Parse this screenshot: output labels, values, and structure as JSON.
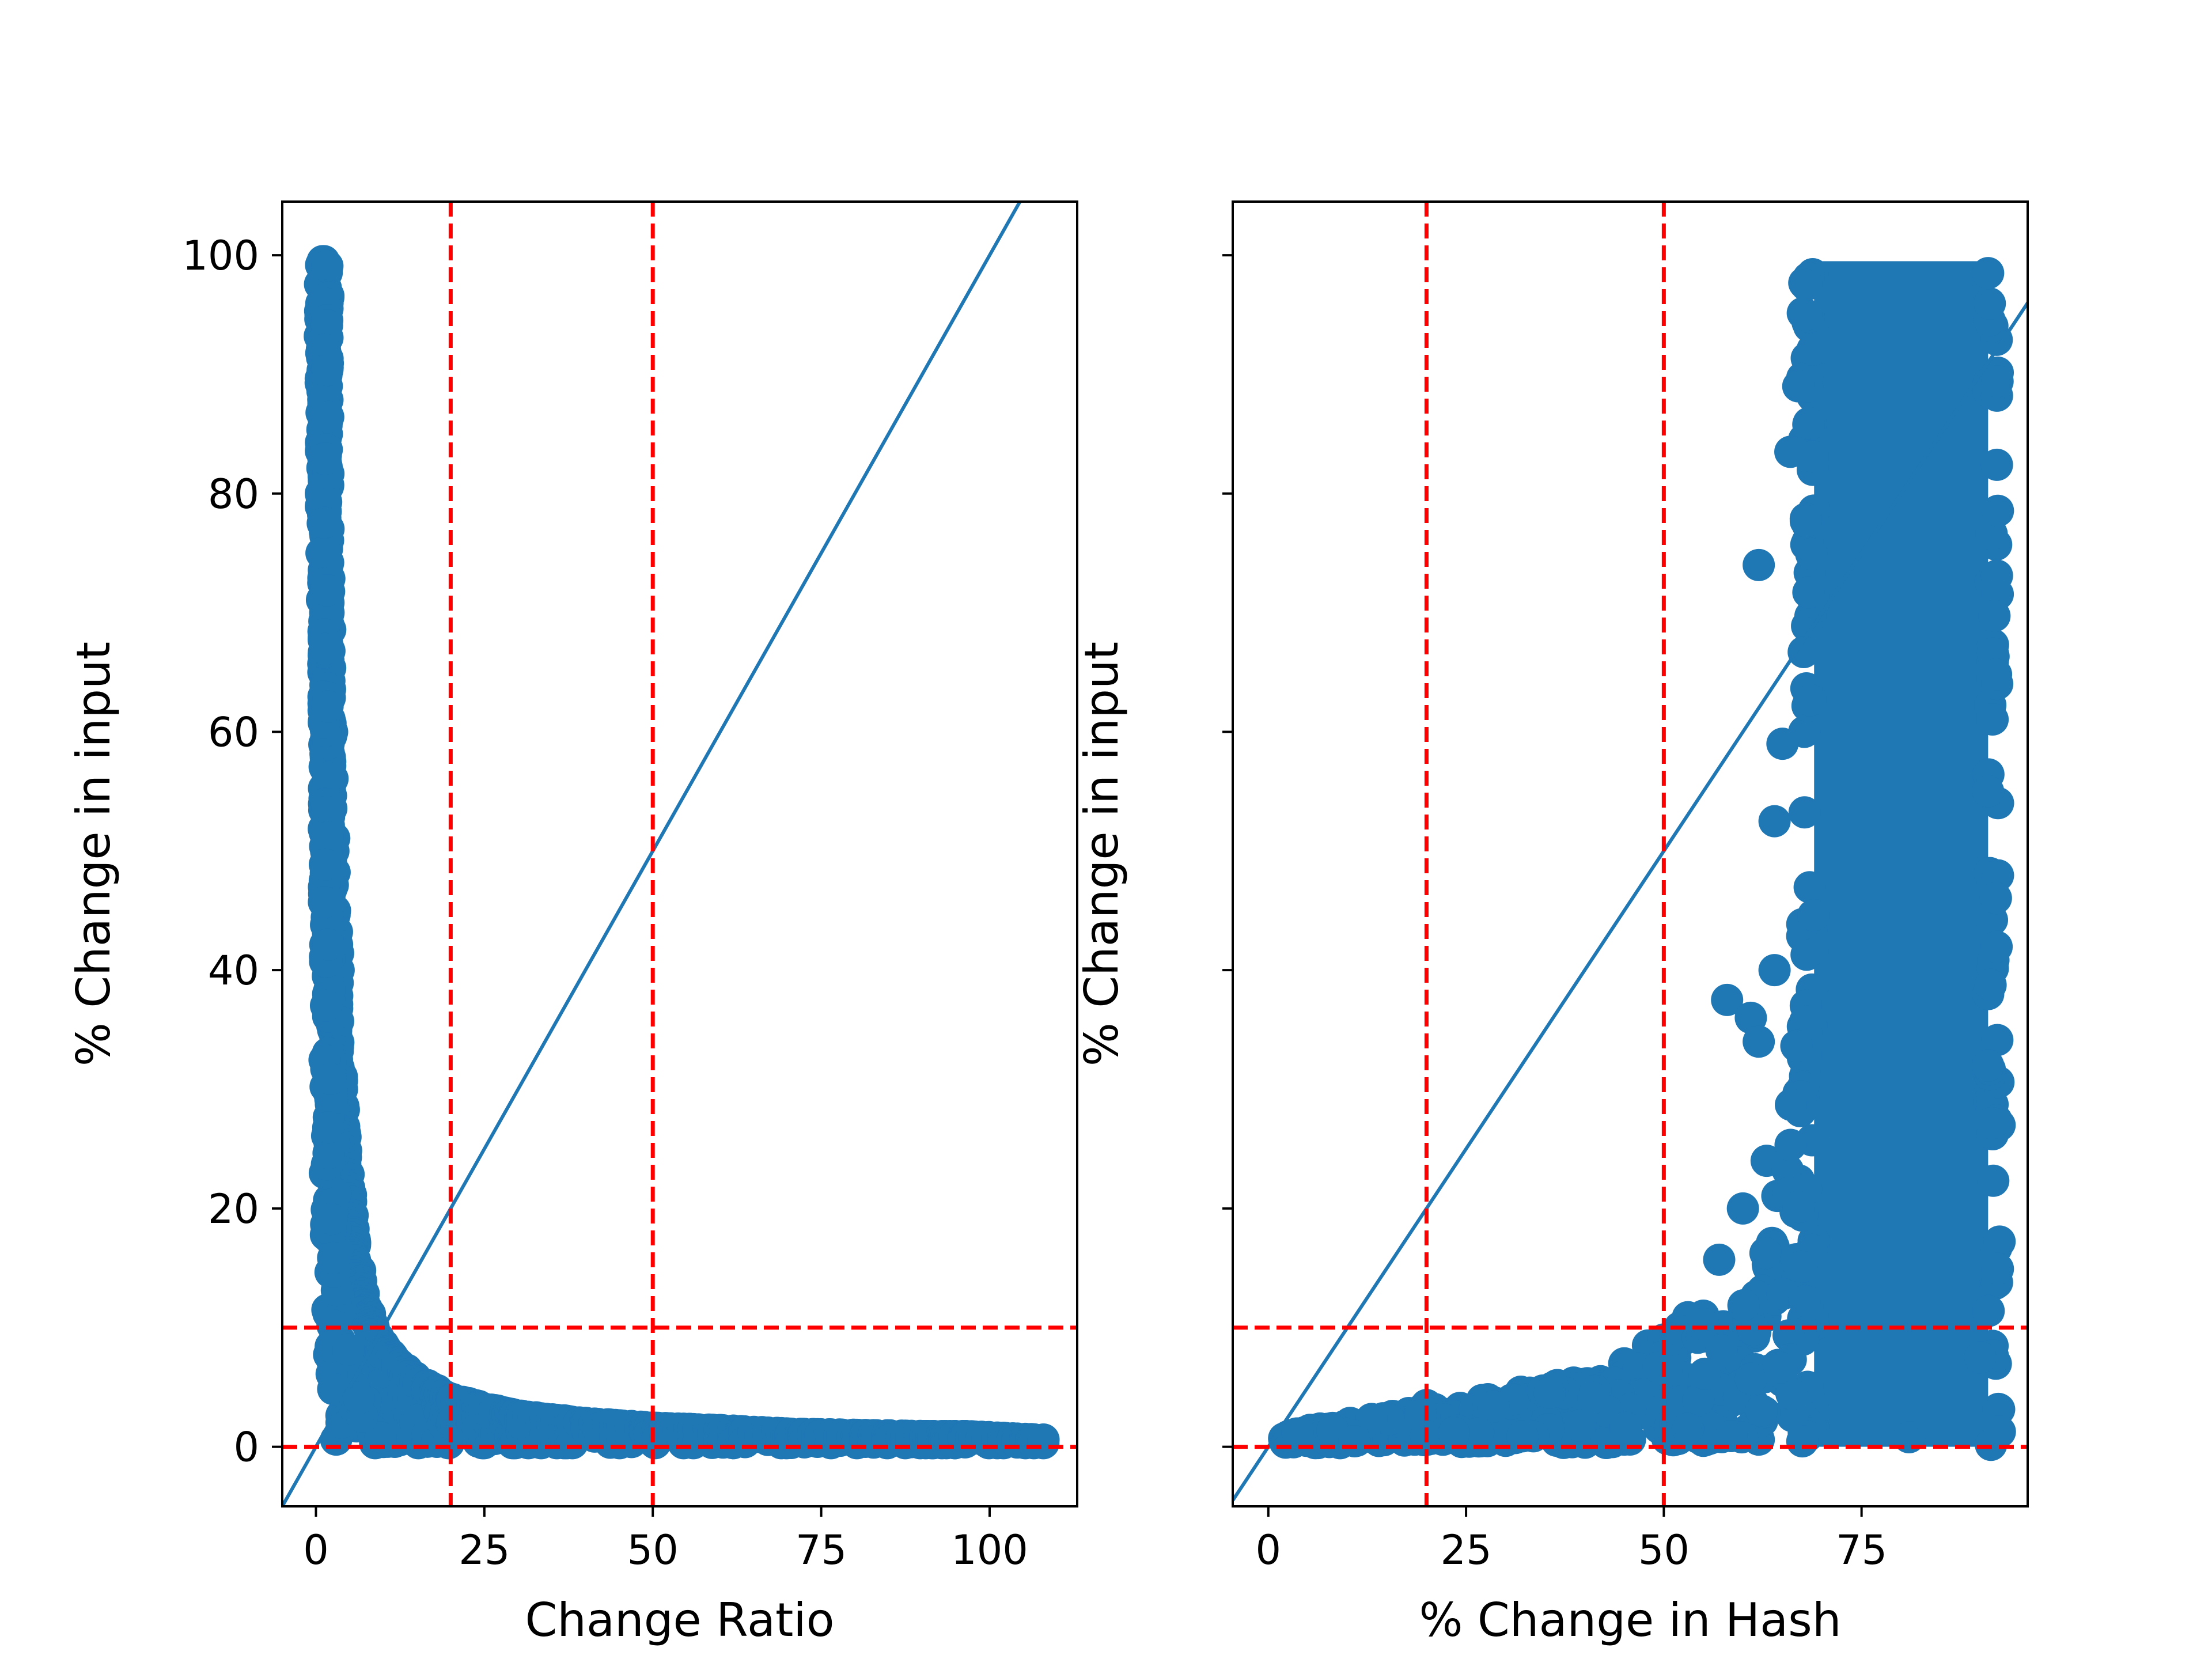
{
  "figure": {
    "colors": {
      "marker": "#1f77b4",
      "identity_line": "#1f77b4",
      "threshold": "#ff0000",
      "background": "#ffffff"
    }
  },
  "chart_data": [
    {
      "type": "scatter",
      "xlabel": "Change Ratio",
      "ylabel": "% Change in input",
      "xlim": [
        -5,
        113
      ],
      "ylim": [
        -5,
        104.5
      ],
      "xticks": [
        0,
        25,
        50,
        75,
        100
      ],
      "yticks": [
        0,
        20,
        40,
        60,
        80,
        100
      ],
      "show_y_tick_labels": true,
      "grid": false,
      "identity_line": true,
      "threshold_lines": {
        "x": [
          20,
          50
        ],
        "y": [
          0,
          10
        ],
        "style": "dashed",
        "color": "#ff0000"
      },
      "scatter_envelope": [
        {
          "x": 1.0,
          "y": 99.5
        },
        {
          "x": 1.0,
          "y": 95
        },
        {
          "x": 1.1,
          "y": 90
        },
        {
          "x": 1.2,
          "y": 85
        },
        {
          "x": 1.3,
          "y": 80
        },
        {
          "x": 1.4,
          "y": 75
        },
        {
          "x": 1.5,
          "y": 70
        },
        {
          "x": 1.6,
          "y": 65
        },
        {
          "x": 1.8,
          "y": 60
        },
        {
          "x": 2.0,
          "y": 55
        },
        {
          "x": 2.2,
          "y": 50
        },
        {
          "x": 2.5,
          "y": 45
        },
        {
          "x": 2.8,
          "y": 40
        },
        {
          "x": 3.0,
          "y": 35
        },
        {
          "x": 3.4,
          "y": 30
        },
        {
          "x": 3.8,
          "y": 26
        },
        {
          "x": 4.5,
          "y": 22
        },
        {
          "x": 5.2,
          "y": 18
        },
        {
          "x": 6.0,
          "y": 15
        },
        {
          "x": 7.0,
          "y": 12
        },
        {
          "x": 8.0,
          "y": 10
        },
        {
          "x": 10,
          "y": 8
        },
        {
          "x": 12,
          "y": 7
        },
        {
          "x": 15,
          "y": 5.5
        },
        {
          "x": 20,
          "y": 4
        },
        {
          "x": 25,
          "y": 3.2
        },
        {
          "x": 30,
          "y": 2.6
        },
        {
          "x": 40,
          "y": 2
        },
        {
          "x": 50,
          "y": 1.6
        },
        {
          "x": 60,
          "y": 1.4
        },
        {
          "x": 70,
          "y": 1.1
        },
        {
          "x": 80,
          "y": 1
        },
        {
          "x": 90,
          "y": 0.9
        },
        {
          "x": 96,
          "y": 0.9
        },
        {
          "x": 108,
          "y": 0.6
        },
        {
          "x": 3,
          "y": 0.6
        },
        {
          "x": 10,
          "y": 0.4
        },
        {
          "x": 30,
          "y": 0.4
        },
        {
          "x": 60,
          "y": 0.5
        },
        {
          "x": 85,
          "y": 0.6
        }
      ]
    },
    {
      "type": "scatter",
      "xlabel": "% Change in Hash",
      "ylabel": "% Change in input",
      "xlim": [
        -4.5,
        96
      ],
      "ylim": [
        -5,
        104.5
      ],
      "xticks": [
        0,
        25,
        50,
        75
      ],
      "yticks": [
        0,
        20,
        40,
        60,
        80,
        100
      ],
      "show_y_tick_labels": false,
      "grid": false,
      "identity_line": true,
      "threshold_lines": {
        "x": [
          20,
          50
        ],
        "y": [
          0,
          10
        ],
        "style": "dashed",
        "color": "#ff0000"
      },
      "dense_region": {
        "x": [
          69,
          91
        ],
        "y": [
          0,
          99.5
        ]
      },
      "scatter_envelope": [
        {
          "x": 2,
          "y": 0.7
        },
        {
          "x": 5,
          "y": 0.8
        },
        {
          "x": 10,
          "y": 0.8
        },
        {
          "x": 14,
          "y": 1.2
        },
        {
          "x": 18,
          "y": 2.5
        },
        {
          "x": 20,
          "y": 3.5
        },
        {
          "x": 22,
          "y": 2
        },
        {
          "x": 26,
          "y": 2.5
        },
        {
          "x": 30,
          "y": 3.5
        },
        {
          "x": 34,
          "y": 4.5
        },
        {
          "x": 38,
          "y": 5
        },
        {
          "x": 42,
          "y": 5.5
        },
        {
          "x": 45,
          "y": 7
        },
        {
          "x": 48,
          "y": 8.5
        },
        {
          "x": 50,
          "y": 9
        },
        {
          "x": 52,
          "y": 10
        },
        {
          "x": 55,
          "y": 11
        },
        {
          "x": 57,
          "y": 15.7
        },
        {
          "x": 58,
          "y": 37.5
        },
        {
          "x": 60,
          "y": 20
        },
        {
          "x": 61,
          "y": 36
        },
        {
          "x": 62,
          "y": 34
        },
        {
          "x": 62,
          "y": 74
        },
        {
          "x": 63,
          "y": 24
        },
        {
          "x": 64,
          "y": 40
        },
        {
          "x": 64,
          "y": 52.5
        },
        {
          "x": 65,
          "y": 59
        },
        {
          "x": 66,
          "y": 83.5
        },
        {
          "x": 67,
          "y": 89
        },
        {
          "x": 68,
          "y": 95
        },
        {
          "x": 68,
          "y": 97.5
        },
        {
          "x": 30,
          "y": 0.5
        },
        {
          "x": 45,
          "y": 0.6
        },
        {
          "x": 55,
          "y": 0.5
        },
        {
          "x": 62,
          "y": 0.6
        },
        {
          "x": 81,
          "y": 0.8
        },
        {
          "x": 90,
          "y": 7.5
        },
        {
          "x": 91,
          "y": 32
        },
        {
          "x": 91,
          "y": 55
        },
        {
          "x": 91,
          "y": 98.5
        }
      ]
    }
  ]
}
